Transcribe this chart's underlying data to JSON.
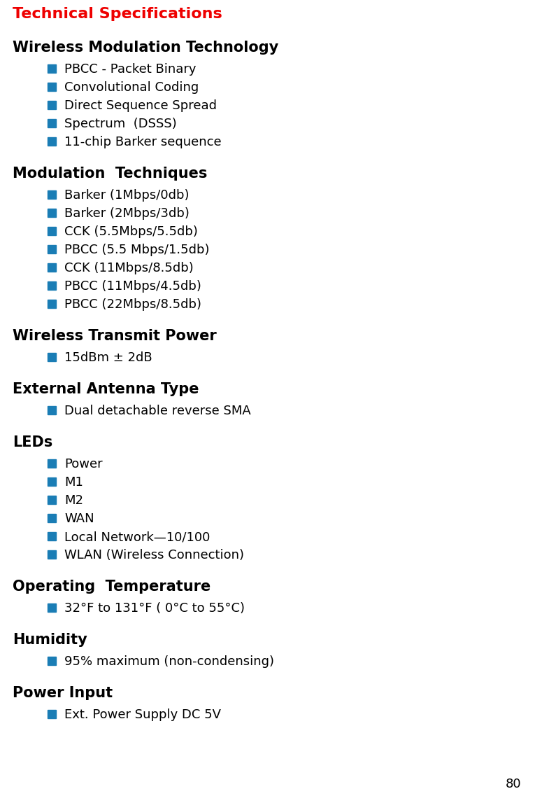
{
  "title": "Technical Specifications",
  "title_color": "#ee0000",
  "bullet_color": "#1a7db5",
  "text_color": "#000000",
  "bg_color": "#ffffff",
  "page_number": "80",
  "sections": [
    {
      "heading": "Wireless Modulation Technology",
      "items": [
        "PBCC - Packet Binary",
        "Convolutional Coding",
        "Direct Sequence Spread",
        "Spectrum  (DSSS)",
        "11-chip Barker sequence"
      ]
    },
    {
      "heading": "Modulation  Techniques",
      "items": [
        "Barker (1Mbps/0db)",
        "Barker (2Mbps/3db)",
        "CCK (5.5Mbps/5.5db)",
        "PBCC (5.5 Mbps/1.5db)",
        "CCK (11Mbps/8.5db)",
        "PBCC (11Mbps/4.5db)",
        "PBCC (22Mbps/8.5db)"
      ]
    },
    {
      "heading": "Wireless Transmit Power",
      "items": [
        "15dBm ± 2dB"
      ]
    },
    {
      "heading": "External Antenna Type",
      "items": [
        "Dual detachable reverse SMA"
      ]
    },
    {
      "heading": "LEDs",
      "items": [
        "Power",
        "M1",
        "M2",
        "WAN",
        "Local Network—10/100",
        "WLAN (Wireless Connection)"
      ]
    },
    {
      "heading": "Operating  Temperature",
      "items": [
        "32°F to 131°F ( 0°C to 55°C)"
      ]
    },
    {
      "heading": "Humidity",
      "items": [
        "95% maximum (non-condensing)"
      ]
    },
    {
      "heading": "Power Input",
      "items": [
        "Ext. Power Supply DC 5V"
      ]
    }
  ]
}
